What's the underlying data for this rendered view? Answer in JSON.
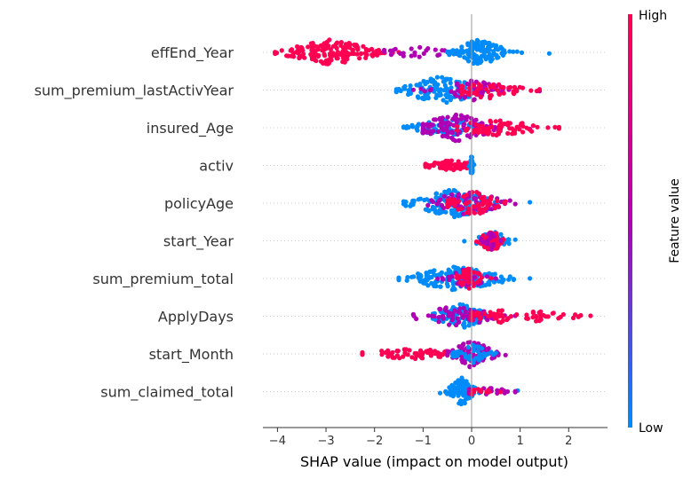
{
  "chart_data": {
    "type": "scatter",
    "subtype": "shap-beeswarm",
    "title": "",
    "xlabel": "SHAP value (impact on model output)",
    "xlim": [
      -4.3,
      2.8
    ],
    "xticks": [
      -4,
      -3,
      -2,
      -1,
      0,
      1,
      2
    ],
    "xtick_labels": [
      "−4",
      "−3",
      "−2",
      "−1",
      "0",
      "1",
      "2"
    ],
    "grid": false,
    "colorbar": {
      "label": "Feature value",
      "high_label": "High",
      "low_label": "Low",
      "high_color": "#ff0052",
      "mid_color": "#b000b4",
      "low_color": "#008bfb"
    },
    "features": [
      {
        "name": "effEnd_Year",
        "groups": [
          {
            "color": "high",
            "min": -4.05,
            "max": -1.5,
            "center": -2.9,
            "spread": 0.5,
            "height": 15,
            "count": 170
          },
          {
            "color": "mid",
            "min": -1.8,
            "max": -0.3,
            "center": -1.1,
            "spread": 0.5,
            "height": 6,
            "count": 25
          },
          {
            "color": "low",
            "min": -0.5,
            "max": 1.6,
            "center": 0.15,
            "spread": 0.3,
            "height": 15,
            "count": 130
          }
        ]
      },
      {
        "name": "sum_premium_lastActivYear",
        "groups": [
          {
            "color": "low",
            "min": -1.55,
            "max": 0.6,
            "center": -0.6,
            "spread": 0.45,
            "height": 16,
            "count": 130
          },
          {
            "color": "mid",
            "min": -1.2,
            "max": 1.4,
            "center": 0.0,
            "spread": 0.4,
            "height": 12,
            "count": 50
          },
          {
            "color": "high",
            "min": -0.2,
            "max": 1.4,
            "center": 0.3,
            "spread": 0.45,
            "height": 10,
            "count": 60
          }
        ]
      },
      {
        "name": "insured_Age",
        "groups": [
          {
            "color": "low",
            "min": -1.4,
            "max": 0.6,
            "center": -0.5,
            "spread": 0.4,
            "height": 12,
            "count": 70
          },
          {
            "color": "mid",
            "min": -1.0,
            "max": 1.2,
            "center": -0.3,
            "spread": 0.45,
            "height": 16,
            "count": 110
          },
          {
            "color": "high",
            "min": -0.3,
            "max": 1.8,
            "center": 0.5,
            "spread": 0.55,
            "height": 9,
            "count": 70
          }
        ]
      },
      {
        "name": "activ",
        "groups": [
          {
            "color": "high",
            "min": -0.95,
            "max": -0.05,
            "center": -0.45,
            "spread": 0.3,
            "height": 6,
            "count": 80
          },
          {
            "color": "low",
            "min": -0.05,
            "max": 0.05,
            "center": 0.0,
            "spread": 0.02,
            "height": 12,
            "count": 40
          }
        ]
      },
      {
        "name": "policyAge",
        "groups": [
          {
            "color": "low",
            "min": -1.4,
            "max": 1.2,
            "center": -0.35,
            "spread": 0.5,
            "height": 16,
            "count": 130
          },
          {
            "color": "mid",
            "min": -0.9,
            "max": 0.9,
            "center": -0.1,
            "spread": 0.45,
            "height": 14,
            "count": 60
          },
          {
            "color": "high",
            "min": -0.5,
            "max": 0.7,
            "center": 0.05,
            "spread": 0.3,
            "height": 14,
            "count": 60
          }
        ]
      },
      {
        "name": "start_Year",
        "groups": [
          {
            "color": "low",
            "min": -0.15,
            "max": 0.9,
            "center": 0.45,
            "spread": 0.2,
            "height": 11,
            "count": 50
          },
          {
            "color": "high",
            "min": 0.1,
            "max": 0.65,
            "center": 0.4,
            "spread": 0.12,
            "height": 14,
            "count": 60
          },
          {
            "color": "mid",
            "min": 0.2,
            "max": 0.6,
            "center": 0.4,
            "spread": 0.1,
            "height": 10,
            "count": 20
          }
        ]
      },
      {
        "name": "sum_premium_total",
        "groups": [
          {
            "color": "low",
            "min": -1.5,
            "max": 1.2,
            "center": -0.3,
            "spread": 0.55,
            "height": 14,
            "count": 150
          },
          {
            "color": "mid",
            "min": -0.7,
            "max": 0.5,
            "center": -0.1,
            "spread": 0.25,
            "height": 12,
            "count": 40
          },
          {
            "color": "high",
            "min": -0.3,
            "max": 0.4,
            "center": -0.05,
            "spread": 0.15,
            "height": 12,
            "count": 40
          }
        ]
      },
      {
        "name": "ApplyDays",
        "groups": [
          {
            "color": "low",
            "min": -0.8,
            "max": 0.6,
            "center": -0.2,
            "spread": 0.3,
            "height": 14,
            "count": 110
          },
          {
            "color": "mid",
            "min": -1.2,
            "max": 0.9,
            "center": -0.3,
            "spread": 0.45,
            "height": 12,
            "count": 60
          },
          {
            "color": "high",
            "min": 0.0,
            "max": 2.45,
            "center": 0.8,
            "spread": 0.7,
            "height": 8,
            "count": 80
          }
        ]
      },
      {
        "name": "start_Month",
        "groups": [
          {
            "color": "high",
            "min": -2.25,
            "max": -0.3,
            "center": -1.2,
            "spread": 0.6,
            "height": 6,
            "count": 70
          },
          {
            "color": "mid",
            "min": -0.5,
            "max": 0.7,
            "center": 0.0,
            "spread": 0.25,
            "height": 16,
            "count": 90
          },
          {
            "color": "low",
            "min": -0.4,
            "max": 0.5,
            "center": 0.0,
            "spread": 0.2,
            "height": 12,
            "count": 40
          }
        ]
      },
      {
        "name": "sum_claimed_total",
        "groups": [
          {
            "color": "low",
            "min": -0.65,
            "max": 0.95,
            "center": -0.2,
            "spread": 0.15,
            "height": 16,
            "count": 90
          },
          {
            "color": "mid",
            "min": -0.05,
            "max": 0.9,
            "center": 0.25,
            "spread": 0.3,
            "height": 5,
            "count": 20
          },
          {
            "color": "high",
            "min": 0.0,
            "max": 0.6,
            "center": 0.15,
            "spread": 0.25,
            "height": 4,
            "count": 15
          }
        ]
      }
    ]
  }
}
